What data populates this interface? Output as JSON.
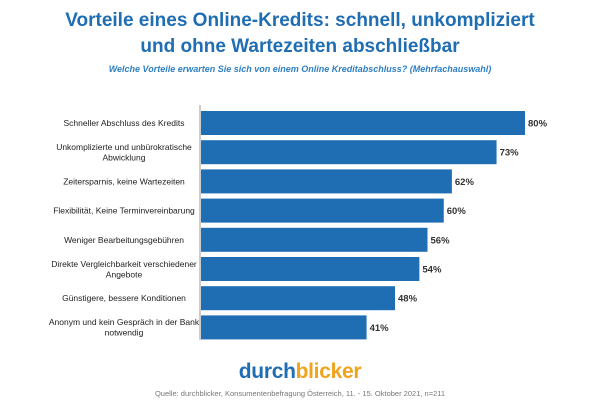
{
  "title_line1": "Vorteile eines Online-Kredits: schnell, unkompliziert",
  "title_line2": "und ohne Wartezeiten abschließbar",
  "subtitle": "Welche Vorteile erwarten Sie sich von einem Online Kreditabschluss? (Mehrfachauswahl)",
  "logo": {
    "part1": "durch",
    "part2": "blicker"
  },
  "source": "Quelle: durchblicker, Konsumentenbefragung Österreich, 11. - 15. Oktober 2021, n=211",
  "colors": {
    "bar": "#1f6db3",
    "title": "#1f6db3",
    "logo_accent": "#f0a41c"
  },
  "chart_data": {
    "type": "bar",
    "orientation": "horizontal",
    "categories": [
      "Schneller Abschluss des Kredits",
      "Unkomplizierte und unbürokratische Abwicklung",
      "Zeitersparnis, keine Wartezeiten",
      "Flexibilität, Keine Terminvereinbarung",
      "Weniger Bearbeitungsgebühren",
      "Direkte Vergleichbarkeit verschiedener Angebote",
      "Günstigere, bessere Konditionen",
      "Anonym und kein Gespräch in der Bank notwendig"
    ],
    "category_lines": [
      [
        "Schneller Abschluss des Kredits"
      ],
      [
        "Unkomplizierte und unbürokratische",
        "Abwicklung"
      ],
      [
        "Zeitersparnis, keine Wartezeiten"
      ],
      [
        "Flexibilität, Keine Terminvereinbarung"
      ],
      [
        "Weniger Bearbeitungsgebühren"
      ],
      [
        "Direkte Vergleichbarkeit verschiedener",
        "Angebote"
      ],
      [
        "Günstigere, bessere Konditionen"
      ],
      [
        "Anonym und kein Gespräch in der Bank",
        "notwendig"
      ]
    ],
    "values": [
      80,
      73,
      62,
      60,
      56,
      54,
      48,
      41
    ],
    "value_labels": [
      "80%",
      "73%",
      "62%",
      "60%",
      "56%",
      "54%",
      "48%",
      "41%"
    ],
    "xlim": [
      0,
      80
    ],
    "grid": false
  }
}
